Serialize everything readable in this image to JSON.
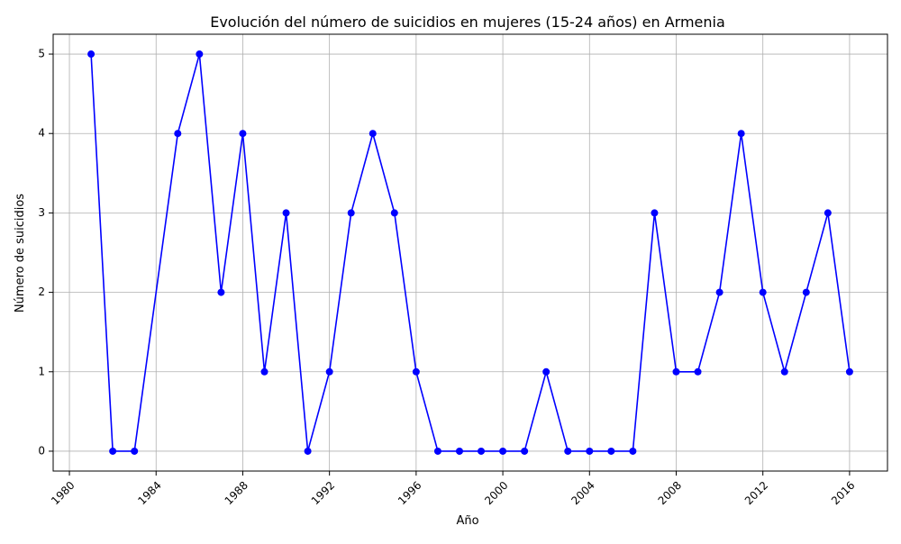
{
  "chart_data": {
    "type": "line",
    "title": "Evolución del número de suicidios en mujeres (15-24 años) en Armenia",
    "xlabel": "Año",
    "ylabel": "Número de suicidios",
    "xlim": [
      1979.25,
      2017.75
    ],
    "ylim": [
      -0.25,
      5.25
    ],
    "xticks": [
      1980,
      1984,
      1988,
      1992,
      1996,
      2000,
      2004,
      2008,
      2012,
      2016
    ],
    "yticks": [
      0,
      1,
      2,
      3,
      4,
      5
    ],
    "grid": true,
    "series": [
      {
        "color": "#0000ff",
        "marker": "circle",
        "x": [
          1981,
          1982,
          1983,
          1985,
          1986,
          1987,
          1988,
          1989,
          1990,
          1991,
          1992,
          1993,
          1994,
          1995,
          1996,
          1997,
          1998,
          1999,
          2000,
          2001,
          2002,
          2003,
          2004,
          2005,
          2006,
          2007,
          2008,
          2009,
          2010,
          2011,
          2012,
          2013,
          2014,
          2015,
          2016
        ],
        "y": [
          5,
          0,
          0,
          4,
          5,
          2,
          4,
          1,
          3,
          0,
          1,
          3,
          4,
          3,
          1,
          0,
          0,
          0,
          0,
          0,
          1,
          0,
          0,
          0,
          0,
          3,
          1,
          1,
          2,
          4,
          2,
          1,
          2,
          3,
          1
        ]
      }
    ]
  }
}
